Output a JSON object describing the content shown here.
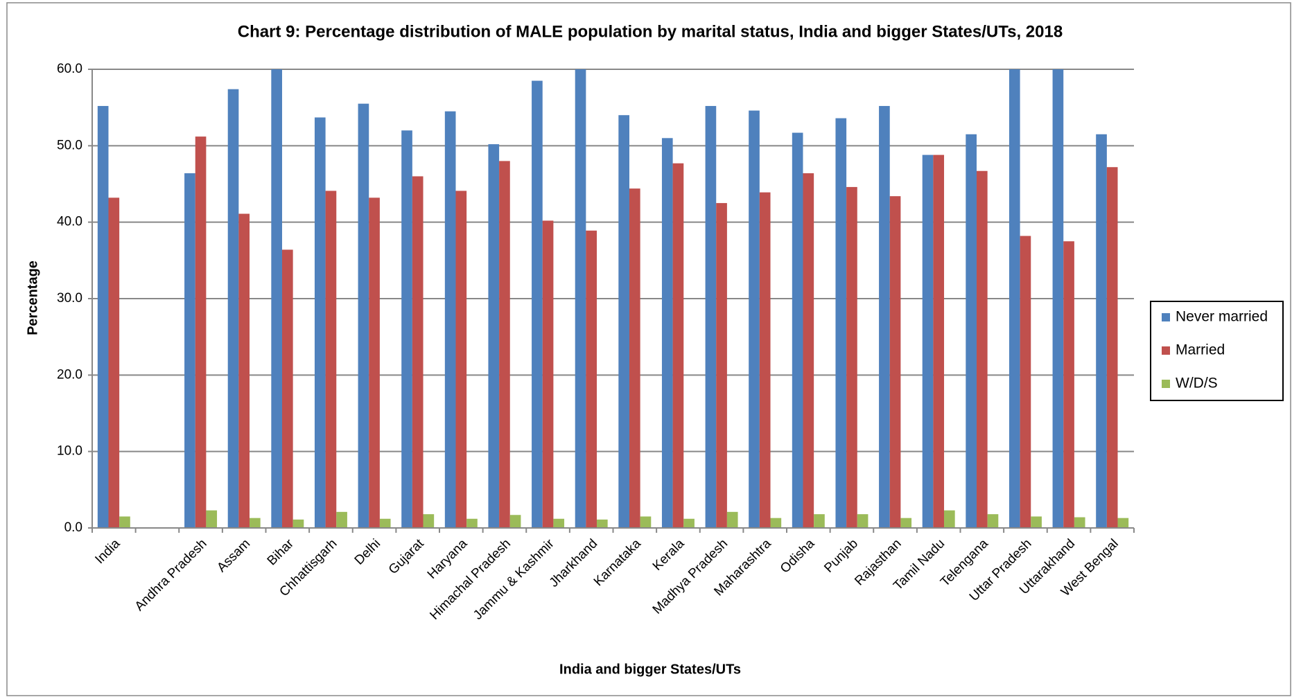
{
  "chart_data": {
    "type": "bar",
    "title": "Chart 9: Percentage distribution of MALE population by marital status, India and bigger States/UTs, 2018",
    "x_label": "India and bigger States/UTs",
    "y_label": "Percentage",
    "categories": [
      "India",
      null,
      "Andhra Pradesh",
      "Assam",
      "Bihar",
      "Chhattisgarh",
      "Delhi",
      "Gujarat",
      "Haryana",
      "Himachal Pradesh",
      "Jammu & Kashmir",
      "Jharkhand",
      "Karnataka",
      "Kerala",
      "Madhya Pradesh",
      "Maharashtra",
      "Odisha",
      "Punjab",
      "Rajasthan",
      "Tamil Nadu",
      "Telengana",
      "Uttar Pradesh",
      "Uttarakhand",
      "West Bengal"
    ],
    "series": [
      {
        "name": "Never married",
        "color": "#4f81bd",
        "values": [
          55.2,
          null,
          46.4,
          57.4,
          62.0,
          53.7,
          55.5,
          52.0,
          54.5,
          50.2,
          58.5,
          60.5,
          54.0,
          51.0,
          55.2,
          54.6,
          51.7,
          53.6,
          55.2,
          48.8,
          51.5,
          61.0,
          61.0,
          51.5
        ]
      },
      {
        "name": "Married",
        "color": "#c0504d",
        "values": [
          43.2,
          null,
          51.2,
          41.1,
          36.4,
          44.1,
          43.2,
          46.0,
          44.1,
          48.0,
          40.2,
          38.9,
          44.4,
          47.7,
          42.5,
          43.9,
          46.4,
          44.6,
          43.4,
          48.8,
          46.7,
          38.2,
          37.5,
          47.2
        ]
      },
      {
        "name": "W/D/S",
        "color": "#9bbb59",
        "values": [
          1.5,
          null,
          2.3,
          1.3,
          1.1,
          2.1,
          1.2,
          1.8,
          1.2,
          1.7,
          1.2,
          1.1,
          1.5,
          1.2,
          2.1,
          1.3,
          1.8,
          1.8,
          1.3,
          2.3,
          1.8,
          1.5,
          1.4,
          1.3
        ]
      }
    ],
    "ylim": [
      0,
      60
    ],
    "yticks": [
      {
        "value": 0,
        "label": "0.0"
      },
      {
        "value": 10,
        "label": "10.0"
      },
      {
        "value": 20,
        "label": "20.0"
      },
      {
        "value": 30,
        "label": "30.0"
      },
      {
        "value": 40,
        "label": "40.0"
      },
      {
        "value": 50,
        "label": "50.0"
      },
      {
        "value": 60,
        "label": "60.0"
      }
    ],
    "grid": true,
    "legend": "right"
  }
}
